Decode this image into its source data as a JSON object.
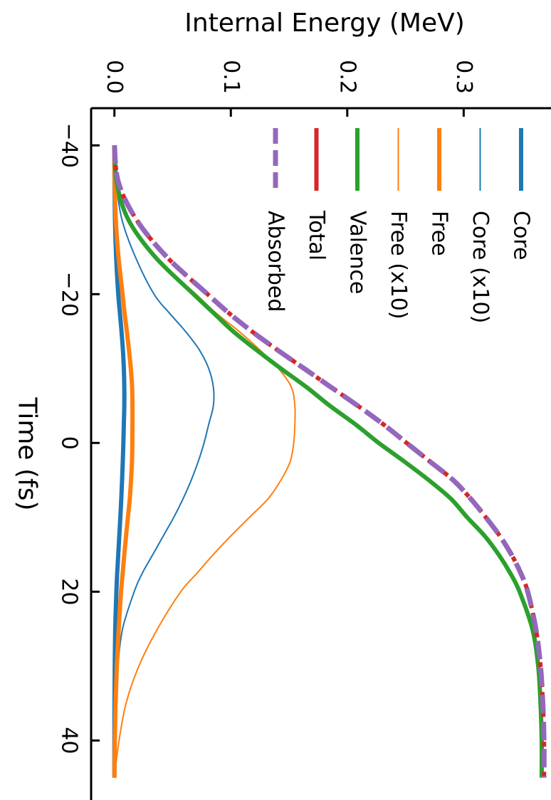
{
  "chart_data": {
    "type": "line",
    "orientation": "rotated-90-clockwise",
    "xlabel": "Time (fs)",
    "ylabel": "Internal Energy (MeV)",
    "xlim": [
      -45,
      48
    ],
    "ylim": [
      -0.02,
      0.375
    ],
    "x_ticks": [
      -40,
      -20,
      0,
      20,
      40
    ],
    "x_tick_labels": [
      "−40",
      "−20",
      "0",
      "20",
      "40"
    ],
    "y_ticks": [
      0.0,
      0.1,
      0.2,
      0.3
    ],
    "y_tick_labels": [
      "0.0",
      "0.1",
      "0.2",
      "0.3"
    ],
    "legend_position": "top-right",
    "x": [
      -40,
      -35,
      -30,
      -25,
      -20,
      -17.5,
      -15,
      -12.5,
      -10,
      -7.5,
      -5,
      -2.5,
      0,
      2.5,
      5,
      7.5,
      10,
      12.5,
      15,
      17.5,
      20,
      25,
      30,
      35,
      40,
      45
    ],
    "series": [
      {
        "name": "Core",
        "color": "#1f77b4",
        "width": 6,
        "dash": "",
        "values": [
          0,
          0.0001,
          0.0005,
          0.0015,
          0.0033,
          0.0047,
          0.0061,
          0.0073,
          0.0081,
          0.0085,
          0.0085,
          0.0081,
          0.0077,
          0.0072,
          0.0066,
          0.0059,
          0.0051,
          0.0042,
          0.0033,
          0.0024,
          0.0017,
          0.0007,
          0.0003,
          0.0001,
          0,
          0
        ]
      },
      {
        "name": "Core (x10)",
        "color": "#1f77b4",
        "width": 2,
        "dash": "",
        "values": [
          0.0002,
          0.0017,
          0.0065,
          0.018,
          0.034,
          0.047,
          0.061,
          0.073,
          0.081,
          0.085,
          0.085,
          0.081,
          0.077,
          0.072,
          0.066,
          0.059,
          0.051,
          0.042,
          0.033,
          0.024,
          0.017,
          0.007,
          0.003,
          0.001,
          0.0003,
          0
        ]
      },
      {
        "name": "Free",
        "color": "#ff7f0e",
        "width": 6,
        "dash": "",
        "values": [
          0,
          0.0002,
          0.0012,
          0.0035,
          0.007,
          0.0087,
          0.0107,
          0.0125,
          0.0141,
          0.0152,
          0.0155,
          0.0155,
          0.0154,
          0.0151,
          0.0143,
          0.0132,
          0.0116,
          0.01,
          0.0085,
          0.0071,
          0.0057,
          0.0037,
          0.0021,
          0.001,
          0.0004,
          0
        ]
      },
      {
        "name": "Free (x10)",
        "color": "#ff7f0e",
        "width": 2,
        "dash": "",
        "values": [
          0.0003,
          0.0022,
          0.012,
          0.035,
          0.07,
          0.087,
          0.107,
          0.125,
          0.141,
          0.152,
          0.155,
          0.155,
          0.154,
          0.151,
          0.143,
          0.132,
          0.116,
          0.1,
          0.085,
          0.071,
          0.057,
          0.037,
          0.021,
          0.01,
          0.004,
          0
        ]
      },
      {
        "name": "Valence",
        "color": "#2ca02c",
        "width": 6,
        "dash": "",
        "values": [
          0,
          0.002,
          0.012,
          0.035,
          0.068,
          0.085,
          0.102,
          0.122,
          0.143,
          0.165,
          0.185,
          0.207,
          0.227,
          0.249,
          0.27,
          0.289,
          0.303,
          0.318,
          0.33,
          0.34,
          0.348,
          0.359,
          0.364,
          0.366,
          0.367,
          0.367
        ]
      },
      {
        "name": "Total",
        "color": "#d62728",
        "width": 6,
        "dash": "7,7",
        "values": [
          0,
          0.0035,
          0.019,
          0.045,
          0.08,
          0.098,
          0.118,
          0.14,
          0.163,
          0.186,
          0.209,
          0.231,
          0.251,
          0.271,
          0.291,
          0.306,
          0.319,
          0.331,
          0.341,
          0.349,
          0.355,
          0.362,
          0.366,
          0.368,
          0.369,
          0.369
        ]
      },
      {
        "name": "Absorbed",
        "color": "#9467bd",
        "width": 7,
        "dash": "26,12",
        "values": [
          0,
          0.0035,
          0.019,
          0.045,
          0.08,
          0.098,
          0.118,
          0.14,
          0.163,
          0.186,
          0.209,
          0.231,
          0.251,
          0.271,
          0.291,
          0.306,
          0.319,
          0.331,
          0.341,
          0.349,
          0.355,
          0.362,
          0.366,
          0.368,
          0.369,
          0.369
        ]
      }
    ]
  }
}
